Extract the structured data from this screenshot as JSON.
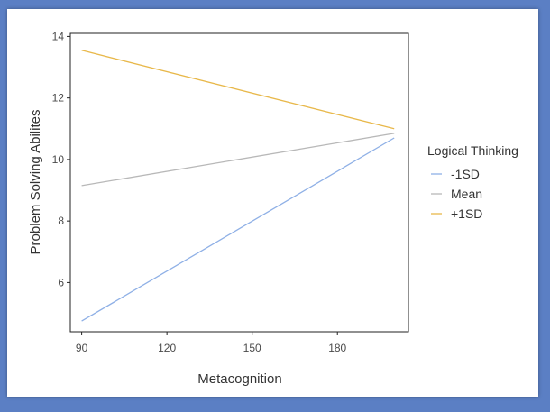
{
  "chart_data": {
    "type": "line",
    "xlabel": "Metacognition",
    "ylabel": "Problem Solving Abilites",
    "xlim": [
      86,
      205
    ],
    "ylim": [
      4.4,
      14.1
    ],
    "xticks": [
      90,
      120,
      150,
      180
    ],
    "yticks": [
      6,
      8,
      10,
      12,
      14
    ],
    "x": [
      90,
      200
    ],
    "legend_title": "Logical Thinking",
    "legend_position": "right",
    "grid": false,
    "series": [
      {
        "name": "-1SD",
        "values": [
          4.75,
          10.7
        ],
        "color": "#8fb0e6"
      },
      {
        "name": "Mean",
        "values": [
          9.15,
          10.85
        ],
        "color": "#b8b8b8"
      },
      {
        "name": "+1SD",
        "values": [
          13.55,
          11.0
        ],
        "color": "#e8b84a"
      }
    ]
  }
}
